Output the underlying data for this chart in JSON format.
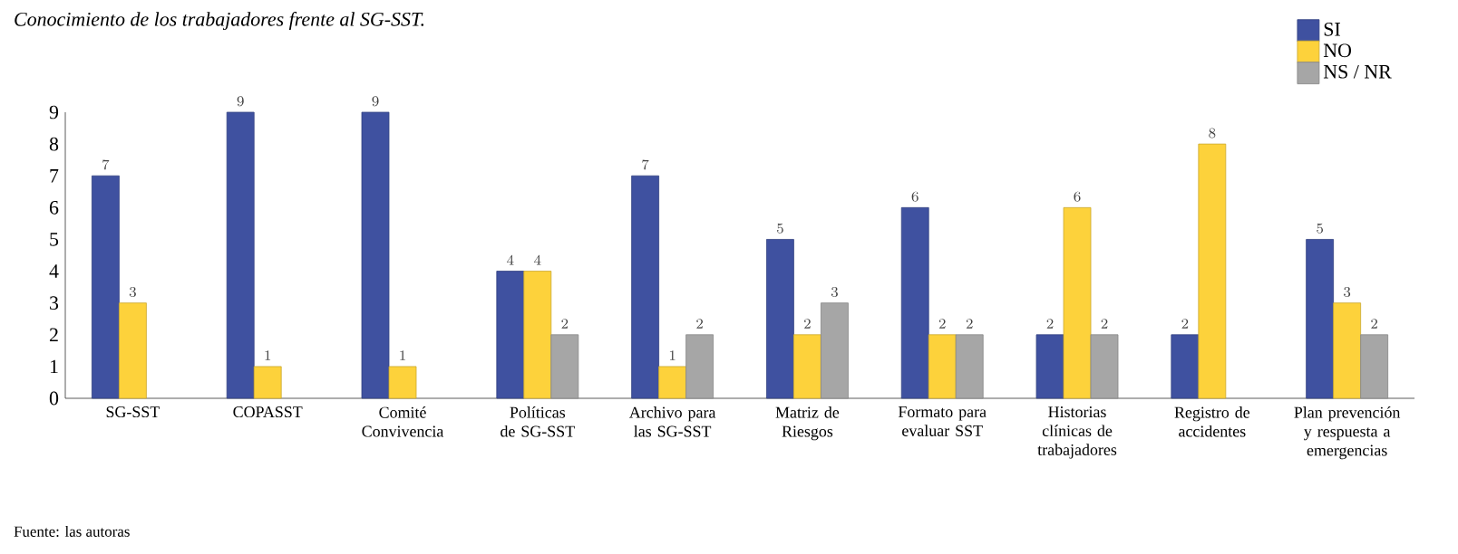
{
  "chart_data": {
    "type": "bar",
    "title": "Conocimiento de los trabajadores frente al SG-SST.",
    "categories": [
      "SG-SST",
      "COPASST",
      "Comité Convivencia",
      "Políticas de SG-SST",
      "Archivo para las SG-SST",
      "Matriz de Riesgos",
      "Formato para evaluar SST",
      "Historias clínicas de trabajadores",
      "Registro de accidentes",
      "Plan prevención y respuesta a emergencias"
    ],
    "series": [
      {
        "name": "SI",
        "color": "#3f51a0",
        "values": [
          7,
          9,
          9,
          4,
          7,
          5,
          6,
          2,
          2,
          5
        ]
      },
      {
        "name": "NO",
        "color": "#fdd23b",
        "values": [
          3,
          1,
          1,
          4,
          1,
          2,
          2,
          6,
          8,
          3
        ]
      },
      {
        "name": "NS / NR",
        "color": "#a6a6a6",
        "values": [
          null,
          null,
          null,
          2,
          2,
          3,
          2,
          2,
          null,
          2
        ]
      }
    ],
    "ylim": [
      0,
      9
    ],
    "yticks": [
      0,
      1,
      2,
      3,
      4,
      5,
      6,
      7,
      8,
      9
    ],
    "data_labels": true,
    "legend": "top right",
    "grid": false,
    "annotations": [
      "Fuente: las autoras"
    ]
  }
}
